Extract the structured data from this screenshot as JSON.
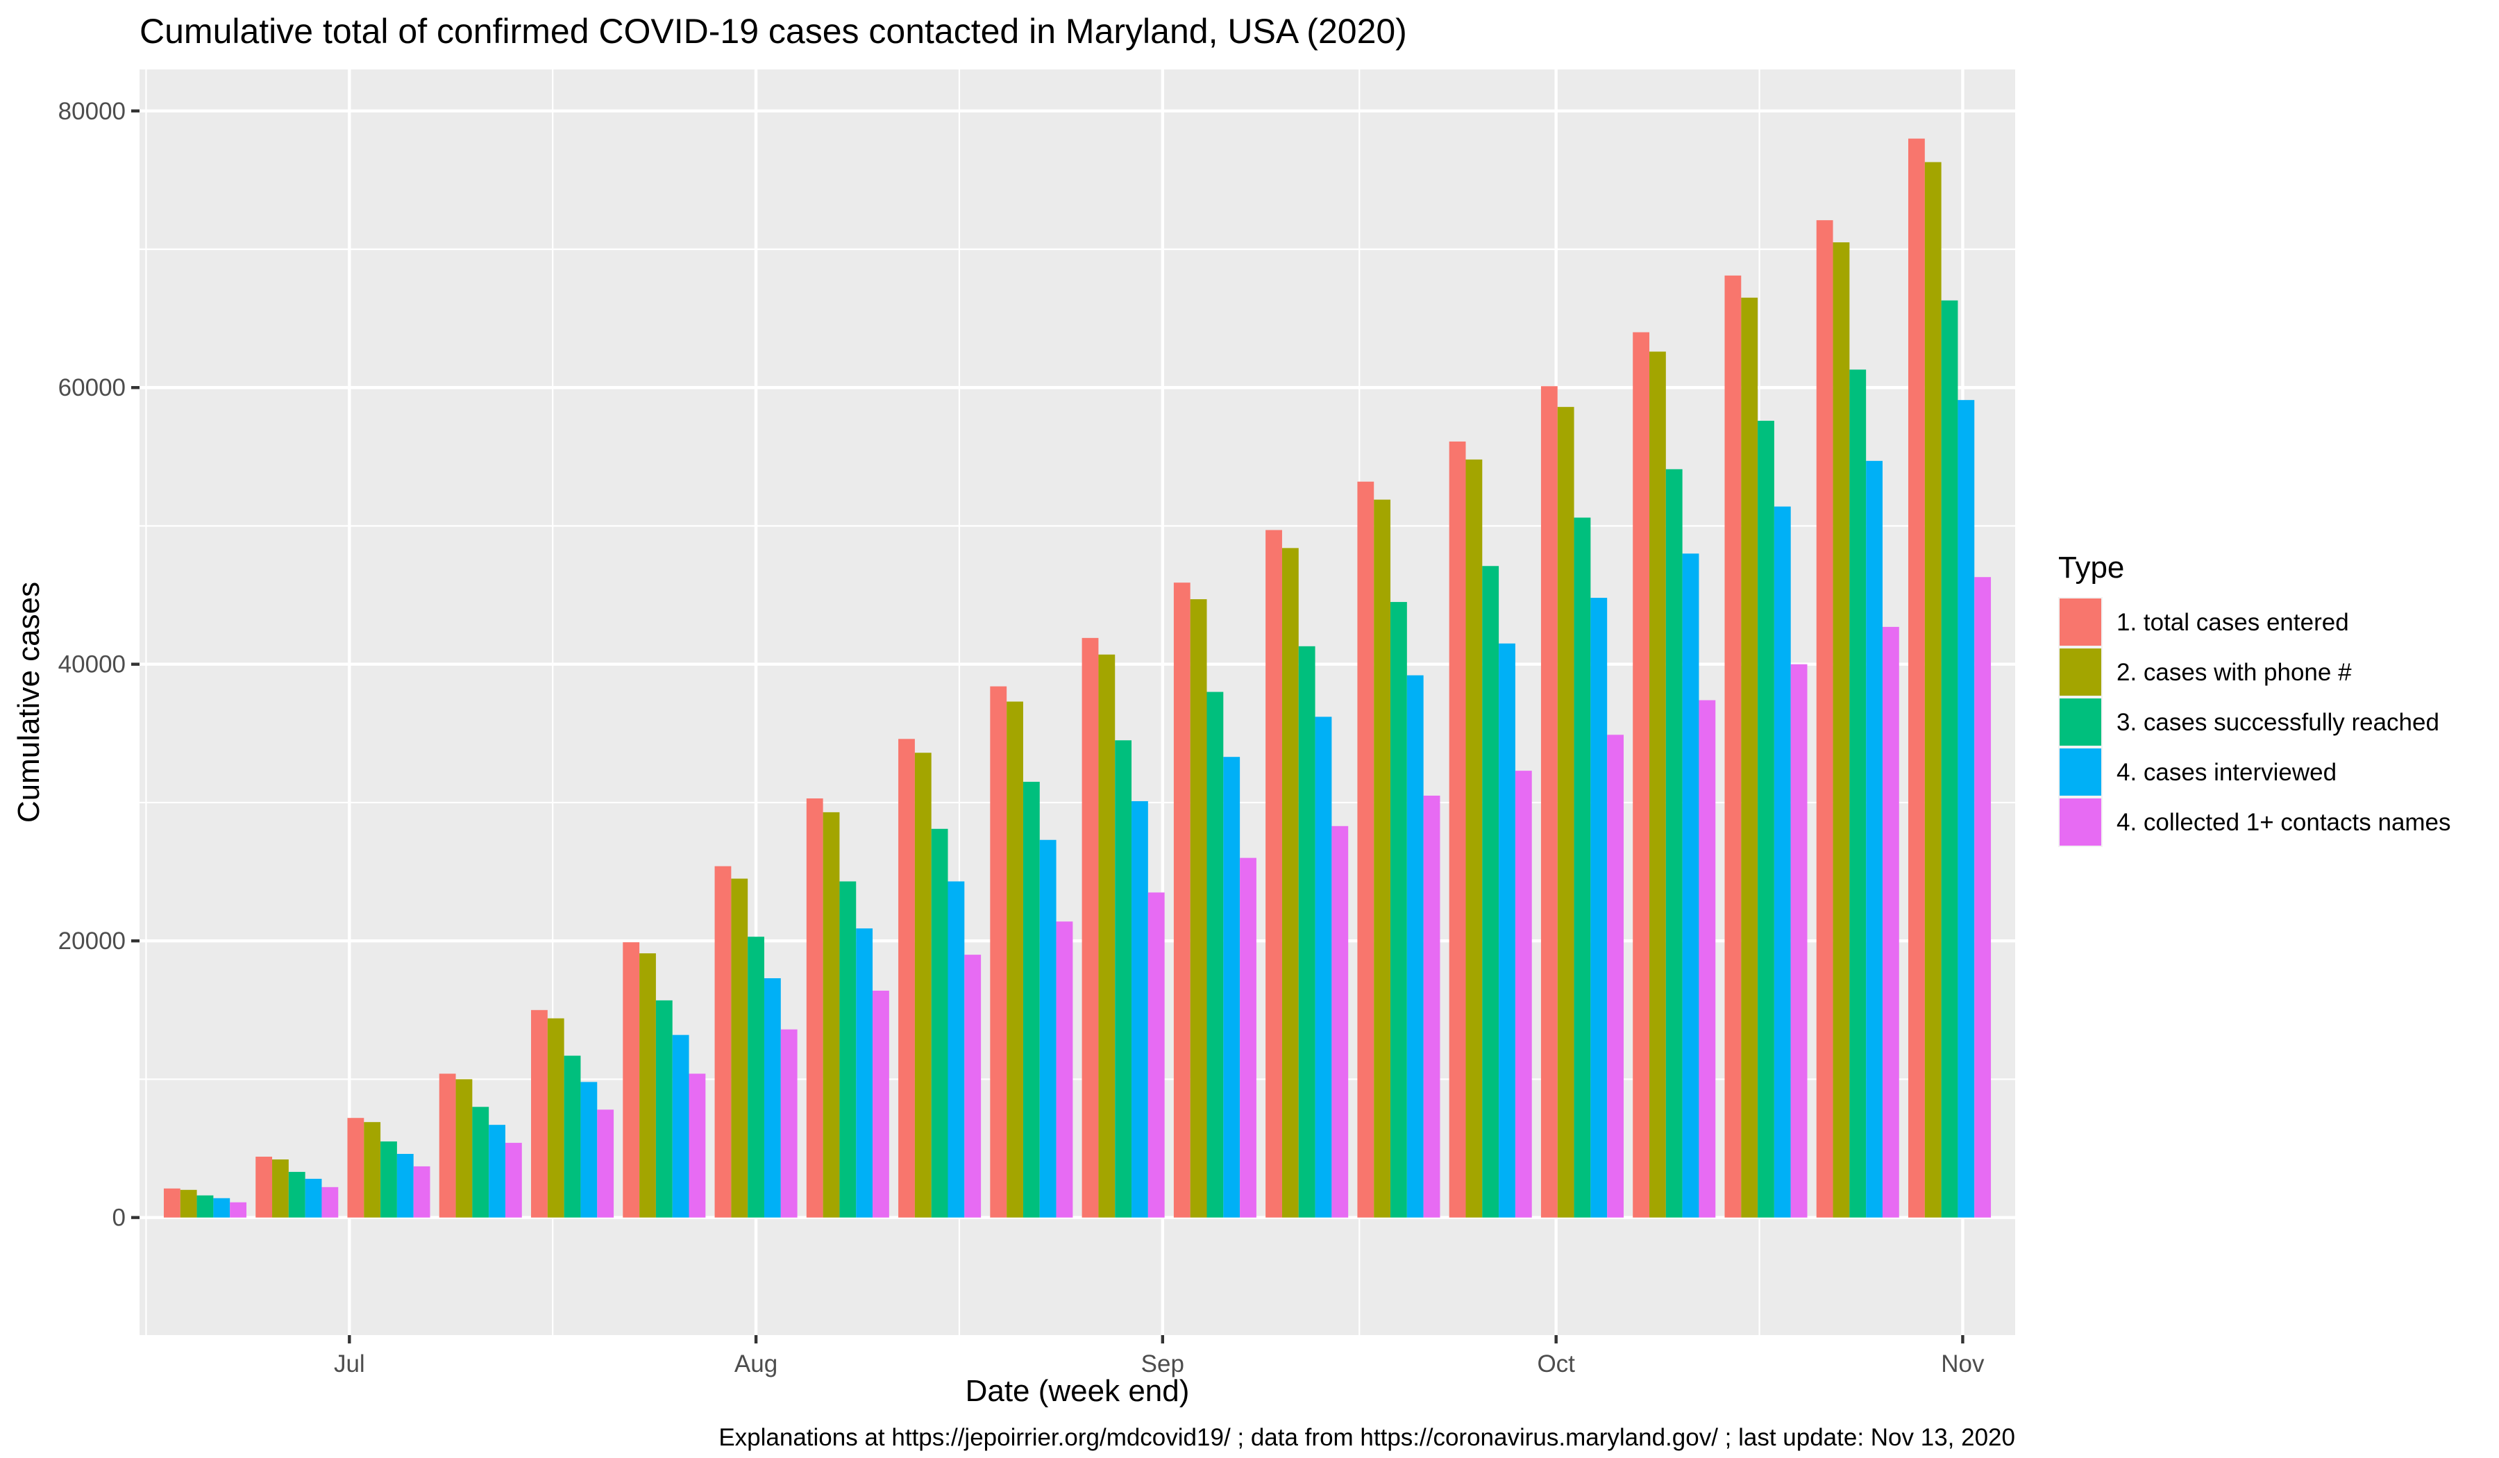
{
  "chart_data": {
    "type": "bar",
    "title": "Cumulative total of confirmed COVID-19 cases contacted in Maryland, USA (2020)",
    "xlabel": "Date (week end)",
    "ylabel": "Cumulative cases",
    "caption": "Explanations at https://jepoirrier.org/mdcovid19/ ; data from https://coronavirus.maryland.gov/ ; last update: Nov 13, 2020",
    "legend_title": "Type",
    "legend_position": "right",
    "grid": true,
    "ylim": [
      -8500,
      83000
    ],
    "yticks": [
      0,
      20000,
      40000,
      60000,
      80000
    ],
    "xlim": [
      "2020-06-15",
      "2020-11-05"
    ],
    "xticks": [
      {
        "date": "2020-07-01",
        "label": "Jul"
      },
      {
        "date": "2020-08-01",
        "label": "Aug"
      },
      {
        "date": "2020-09-01",
        "label": "Sep"
      },
      {
        "date": "2020-10-01",
        "label": "Oct"
      },
      {
        "date": "2020-11-01",
        "label": "Nov"
      }
    ],
    "categories": [
      "2020-06-20",
      "2020-06-27",
      "2020-07-04",
      "2020-07-11",
      "2020-07-18",
      "2020-07-25",
      "2020-08-01",
      "2020-08-08",
      "2020-08-15",
      "2020-08-22",
      "2020-08-29",
      "2020-09-05",
      "2020-09-12",
      "2020-09-19",
      "2020-09-26",
      "2020-10-03",
      "2020-10-10",
      "2020-10-17",
      "2020-10-24",
      "2020-10-31"
    ],
    "series": [
      {
        "name": "1. total cases entered",
        "color": "#F8766D",
        "values": [
          2100,
          4400,
          7200,
          10400,
          15000,
          19900,
          25400,
          30300,
          34600,
          38400,
          41900,
          45900,
          49700,
          53200,
          56100,
          60100,
          64000,
          68100,
          72100,
          78000
        ]
      },
      {
        "name": "2. cases with phone #",
        "color": "#A3A500",
        "values": [
          2000,
          4200,
          6900,
          10000,
          14400,
          19100,
          24500,
          29300,
          33600,
          37300,
          40700,
          44700,
          48400,
          51900,
          54800,
          58600,
          62600,
          66500,
          70500,
          76300
        ]
      },
      {
        "name": "3. cases successfully reached",
        "color": "#00BF7D",
        "values": [
          1600,
          3300,
          5500,
          8000,
          11700,
          15700,
          20300,
          24300,
          28100,
          31500,
          34500,
          38000,
          41300,
          44500,
          47100,
          50600,
          54100,
          57600,
          61300,
          66300
        ]
      },
      {
        "name": "4. cases interviewed",
        "color": "#00B0F6",
        "values": [
          1400,
          2800,
          4600,
          6700,
          9800,
          13200,
          17300,
          20900,
          24300,
          27300,
          30100,
          33300,
          36200,
          39200,
          41500,
          44800,
          48000,
          51400,
          54700,
          59100
        ]
      },
      {
        "name": "4. collected 1+ contacts names",
        "color": "#E76BF3",
        "values": [
          1100,
          2200,
          3700,
          5400,
          7800,
          10400,
          13600,
          16400,
          19000,
          21400,
          23500,
          26000,
          28300,
          30500,
          32300,
          34900,
          37400,
          40000,
          42700,
          46300
        ]
      }
    ]
  }
}
